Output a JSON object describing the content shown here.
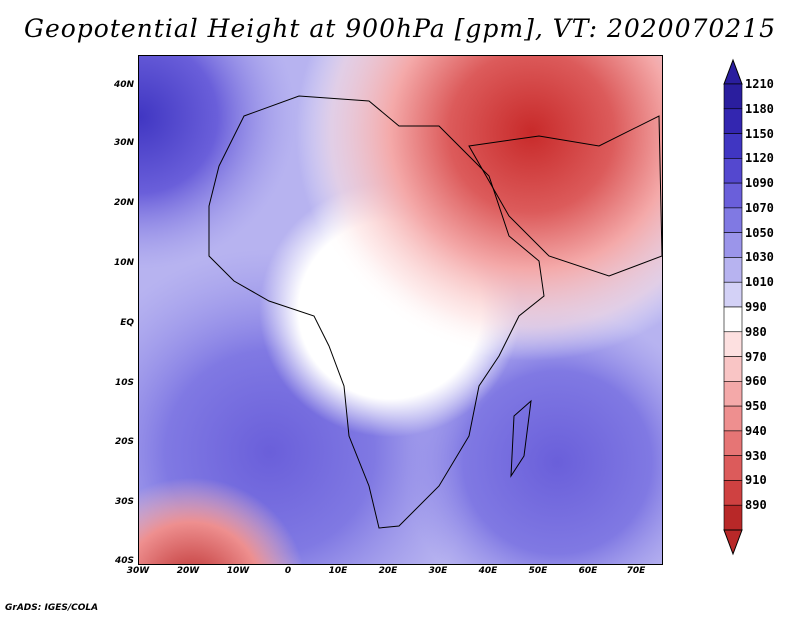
{
  "title": "Geopotential Height at 900hPa [gpm], VT: 2020070215",
  "footer": "GrADS: IGES/COLA",
  "map": {
    "projection": "lat-lon",
    "lon_range": [
      "30W",
      "75E"
    ],
    "lat_range": [
      "40S",
      "45N"
    ],
    "y_ticks": [
      "40N",
      "30N",
      "20N",
      "10N",
      "EQ",
      "10S",
      "20S",
      "30S",
      "40S"
    ],
    "x_ticks": [
      "30W",
      "20W",
      "10W",
      "0",
      "10E",
      "20E",
      "30E",
      "40E",
      "50E",
      "60E",
      "70E"
    ]
  },
  "colorbar": {
    "labels": [
      "1210",
      "1180",
      "1150",
      "1120",
      "1090",
      "1070",
      "1050",
      "1030",
      "1010",
      "990",
      "980",
      "970",
      "960",
      "950",
      "940",
      "930",
      "910",
      "890"
    ],
    "colors": [
      "#2a1e9e",
      "#3326b0",
      "#4036c2",
      "#5448cf",
      "#6a5fda",
      "#8079e3",
      "#9b95ea",
      "#b7b3f0",
      "#d3d1f6",
      "#ffffff",
      "#fde0e0",
      "#f9c5c5",
      "#f4a9a9",
      "#ee8f8f",
      "#e67575",
      "#dc5b5b",
      "#cf4141",
      "#b82828"
    ]
  }
}
